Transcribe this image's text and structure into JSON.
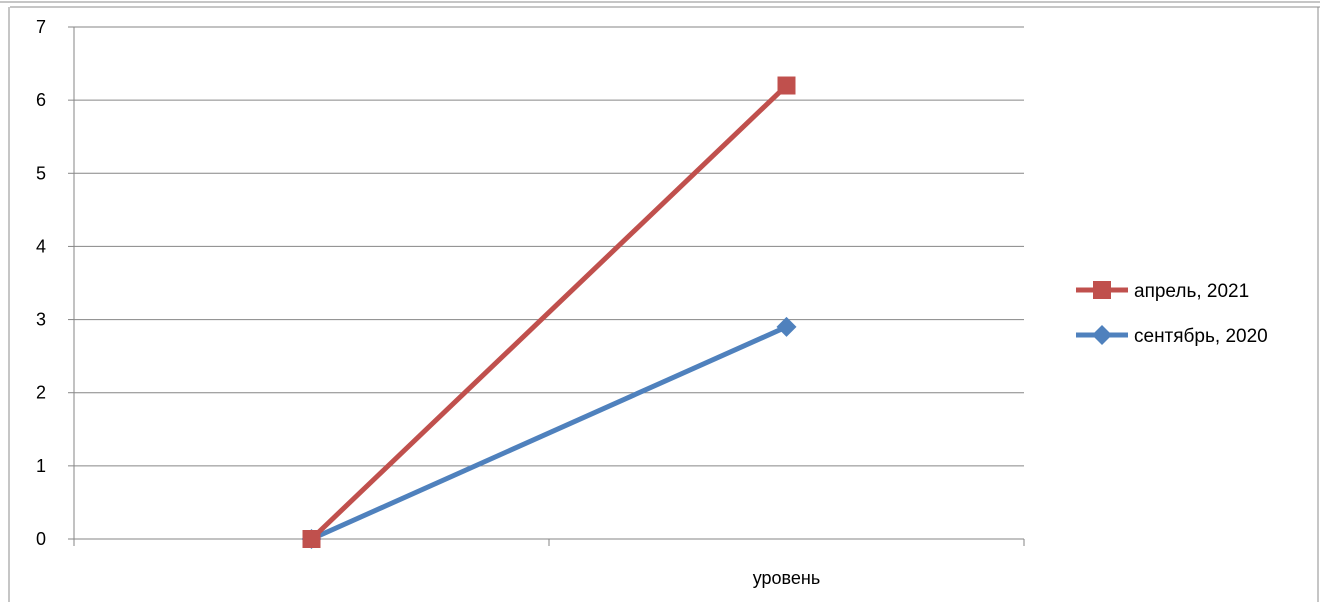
{
  "chart_data": {
    "type": "line",
    "categories": [
      "",
      "уровень"
    ],
    "series": [
      {
        "name": "апрель, 2021",
        "values": [
          0,
          6.2
        ],
        "color": "#C0504D",
        "marker": "square"
      },
      {
        "name": "сентябрь, 2020",
        "values": [
          0,
          2.9
        ],
        "color": "#4F81BD",
        "marker": "diamond"
      }
    ],
    "y_ticks": [
      "0",
      "1",
      "2",
      "3",
      "4",
      "5",
      "6",
      "7"
    ],
    "ylim": [
      0,
      7
    ],
    "grid": true,
    "legend_position": "right"
  }
}
